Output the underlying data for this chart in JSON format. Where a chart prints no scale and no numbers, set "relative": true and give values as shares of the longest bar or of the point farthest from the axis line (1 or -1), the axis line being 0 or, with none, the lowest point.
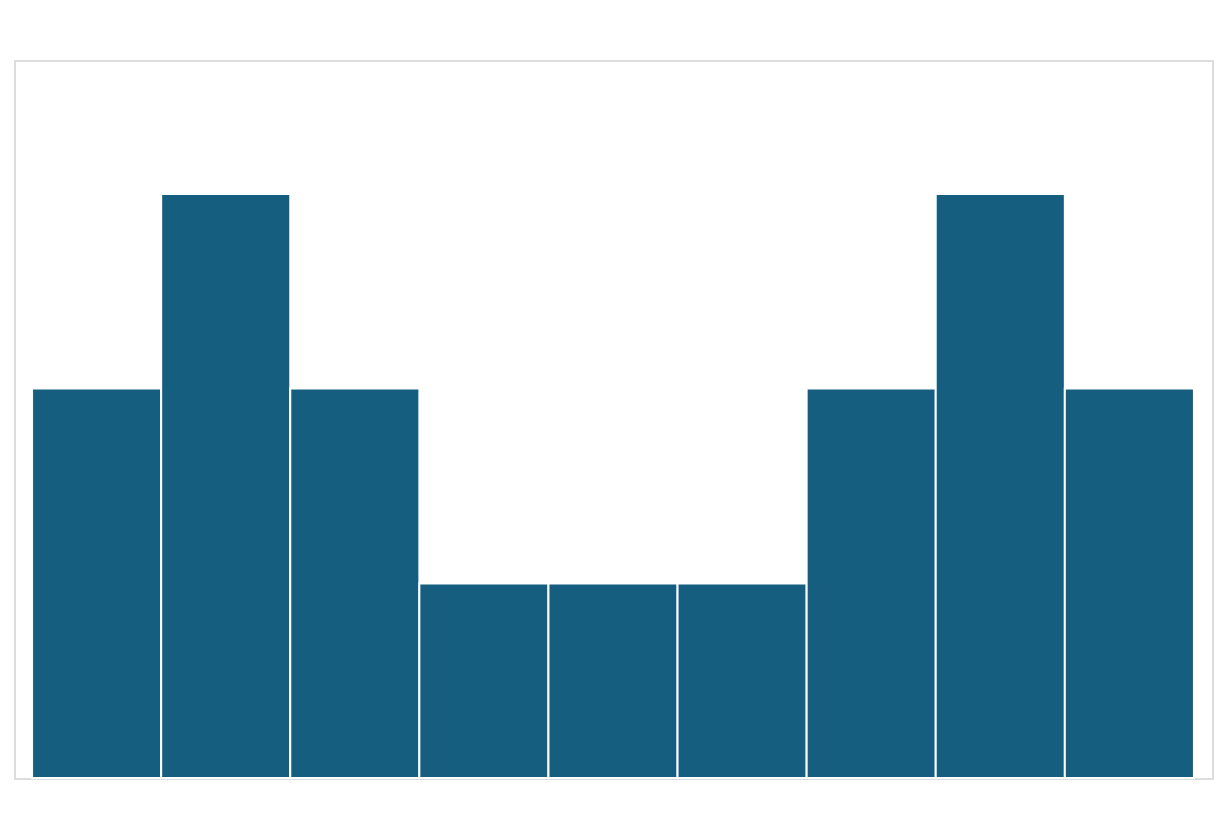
{
  "chart_data": {
    "type": "bar",
    "relative": true,
    "categories": [
      null,
      null,
      null,
      null,
      null,
      null,
      null,
      null,
      null
    ],
    "values": [
      0.667,
      1,
      0.667,
      0.333,
      0.333,
      0.333,
      0.667,
      1,
      0.667
    ],
    "color": "#155e80",
    "grid": false
  }
}
